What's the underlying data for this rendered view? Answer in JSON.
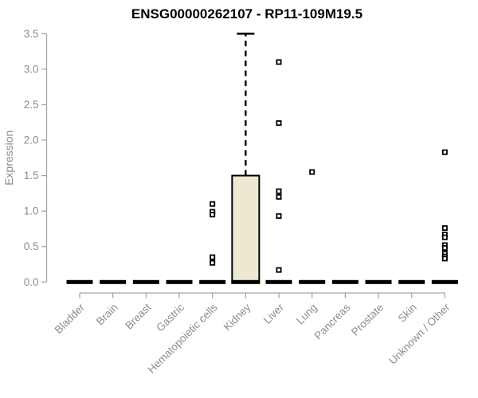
{
  "chart_data": {
    "type": "box",
    "title": "ENSG00000262107 - RP11-109M19.5",
    "xlabel": "",
    "ylabel": "Expression",
    "ylim": [
      0,
      3.5
    ],
    "yticks": [
      0.0,
      0.5,
      1.0,
      1.5,
      2.0,
      2.5,
      3.0,
      3.5
    ],
    "grid": false,
    "legend": false,
    "x_label_rotation_deg": 45,
    "categories": [
      "Bladder",
      "Brain",
      "Breast",
      "Gastric",
      "Hematopoietic cells",
      "Kidney",
      "Liver",
      "Lung",
      "Pancreas",
      "Prostate",
      "Skin",
      "Unknown / Other"
    ],
    "series": [
      {
        "category": "Bladder",
        "q1": 0,
        "median": 0,
        "q3": 0,
        "whisker_low": 0,
        "whisker_high": 0,
        "outliers": []
      },
      {
        "category": "Brain",
        "q1": 0,
        "median": 0,
        "q3": 0,
        "whisker_low": 0,
        "whisker_high": 0,
        "outliers": []
      },
      {
        "category": "Breast",
        "q1": 0,
        "median": 0,
        "q3": 0,
        "whisker_low": 0,
        "whisker_high": 0,
        "outliers": []
      },
      {
        "category": "Gastric",
        "q1": 0,
        "median": 0,
        "q3": 0,
        "whisker_low": 0,
        "whisker_high": 0,
        "outliers": []
      },
      {
        "category": "Hematopoietic cells",
        "q1": 0,
        "median": 0,
        "q3": 0,
        "whisker_low": 0,
        "whisker_high": 0,
        "outliers": [
          1.1,
          0.99,
          0.95,
          0.35,
          0.27
        ]
      },
      {
        "category": "Kidney",
        "q1": 0,
        "median": 0,
        "q3": 1.5,
        "whisker_low": 0,
        "whisker_high": 3.5,
        "outliers": []
      },
      {
        "category": "Liver",
        "q1": 0,
        "median": 0,
        "q3": 0,
        "whisker_low": 0,
        "whisker_high": 0,
        "outliers": [
          3.1,
          2.24,
          1.28,
          1.2,
          0.93,
          0.17
        ]
      },
      {
        "category": "Lung",
        "q1": 0,
        "median": 0,
        "q3": 0,
        "whisker_low": 0,
        "whisker_high": 0,
        "outliers": [
          1.55
        ]
      },
      {
        "category": "Pancreas",
        "q1": 0,
        "median": 0,
        "q3": 0,
        "whisker_low": 0,
        "whisker_high": 0,
        "outliers": []
      },
      {
        "category": "Prostate",
        "q1": 0,
        "median": 0,
        "q3": 0,
        "whisker_low": 0,
        "whisker_high": 0,
        "outliers": []
      },
      {
        "category": "Skin",
        "q1": 0,
        "median": 0,
        "q3": 0,
        "whisker_low": 0,
        "whisker_high": 0,
        "outliers": []
      },
      {
        "category": "Unknown / Other",
        "q1": 0,
        "median": 0,
        "q3": 0,
        "whisker_low": 0,
        "whisker_high": 0,
        "outliers": [
          1.83,
          0.76,
          0.67,
          0.63,
          0.52,
          0.48,
          0.4,
          0.36,
          0.33
        ]
      }
    ],
    "colors": {
      "box_fill": "#EDE8D0",
      "box_border": "#000000",
      "median": "#000000",
      "whisker": "#000000",
      "outlier_stroke": "#000000",
      "outlier_fill": "#ffffff",
      "axis_line": "#A6A6A6",
      "tick_text": "#8C8C8C",
      "title_text": "#000000",
      "background": "#ffffff"
    }
  }
}
